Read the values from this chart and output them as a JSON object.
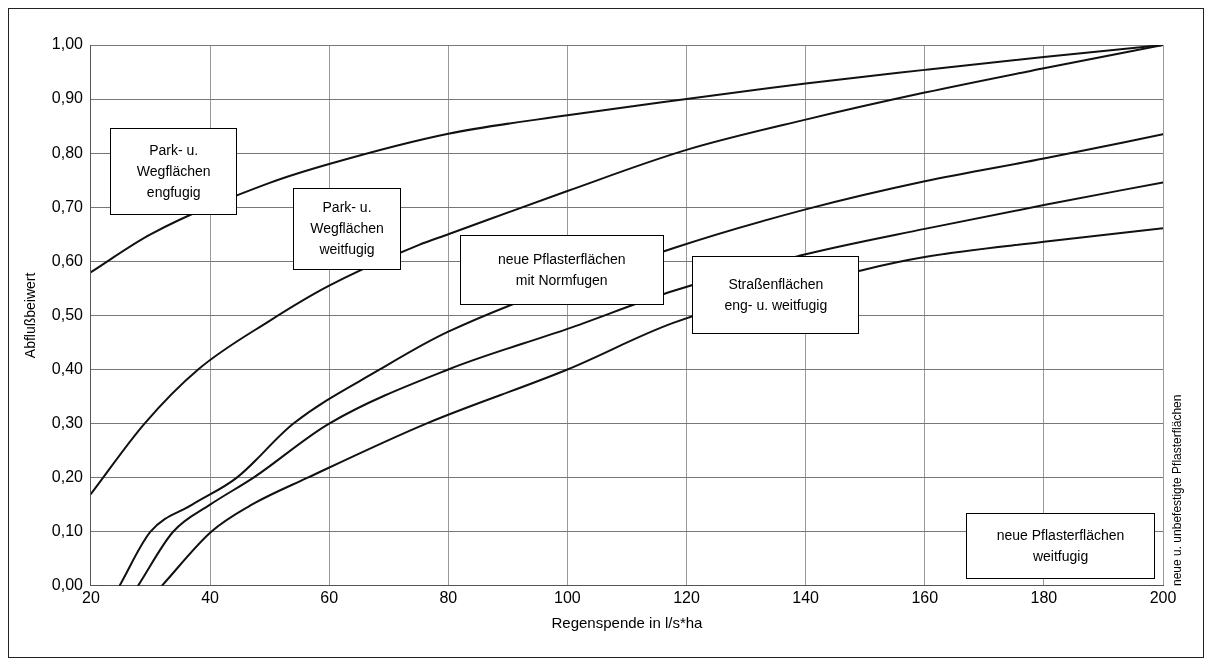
{
  "chart_data": {
    "type": "line",
    "xlabel": "Regenspende in l/s*ha",
    "ylabel": "Abflußbeiwert",
    "xlim": [
      20,
      200
    ],
    "xticks": [
      20,
      40,
      60,
      80,
      100,
      120,
      140,
      160,
      180,
      200
    ],
    "ylim": [
      0,
      1
    ],
    "yticks": [
      {
        "value": 0,
        "label": "0,00"
      },
      {
        "value": 0.1,
        "label": "0,10"
      },
      {
        "value": 0.2,
        "label": "0,20"
      },
      {
        "value": 0.3,
        "label": "0,30"
      },
      {
        "value": 0.4,
        "label": "0,40"
      },
      {
        "value": 0.5,
        "label": "0,50"
      },
      {
        "value": 0.6,
        "label": "0,60"
      },
      {
        "value": 0.7,
        "label": "0,70"
      },
      {
        "value": 0.8,
        "label": "0,80"
      },
      {
        "value": 0.9,
        "label": "0,90"
      },
      {
        "value": 1,
        "label": "1,00"
      }
    ],
    "grid": true,
    "marker": "none",
    "line_style": "solid",
    "series": [
      {
        "color": "#111111",
        "x": [
          20,
          30,
          50,
          60,
          80,
          100,
          120,
          140,
          160,
          180,
          200
        ],
        "values": [
          0.58,
          0.65,
          0.745,
          0.78,
          0.836,
          0.87,
          0.9,
          0.929,
          0.954,
          0.978,
          1.0
        ]
      },
      {
        "color": "#111111",
        "x": [
          20,
          29,
          38,
          50,
          60,
          75,
          80,
          100,
          120,
          140,
          160,
          180,
          200
        ],
        "values": [
          0.17,
          0.3,
          0.4,
          0.49,
          0.555,
          0.63,
          0.65,
          0.73,
          0.806,
          0.862,
          0.912,
          0.957,
          1.0
        ]
      },
      {
        "color": "#111111",
        "x": [
          24.8,
          30,
          37,
          44.5,
          54,
          68.5,
          80,
          118,
          140,
          160,
          180,
          200
        ],
        "values": [
          0,
          0.1,
          0.15,
          0.2,
          0.3,
          0.4,
          0.47,
          0.625,
          0.696,
          0.748,
          0.79,
          0.835
        ]
      },
      {
        "color": "#111111",
        "x": [
          27.9,
          33.8,
          40,
          47.3,
          60,
          80,
          100,
          118,
          140,
          160,
          180,
          200
        ],
        "values": [
          0,
          0.1,
          0.15,
          0.2,
          0.3,
          0.4,
          0.475,
          0.546,
          0.613,
          0.66,
          0.704,
          0.746
        ]
      },
      {
        "color": "#111111",
        "x": [
          31.9,
          40.2,
          47,
          56.4,
          76.3,
          100,
          118,
          150,
          160,
          180,
          200
        ],
        "values": [
          0,
          0.1,
          0.15,
          0.2,
          0.3,
          0.4,
          0.487,
          0.585,
          0.608,
          0.636,
          0.661
        ]
      }
    ],
    "annotations": [
      "Park- u.\nWegflächen\nengfugig",
      "Park- u.\nWegflächen\nweitfugig",
      "neue Pflasterflächen\nmit Normfugen",
      "Straßenflächen\neng- u. weitfugig",
      "neue Pflasterflächen\nweitfugig",
      "neue u. unbefestigte Pflasterflächen"
    ]
  }
}
